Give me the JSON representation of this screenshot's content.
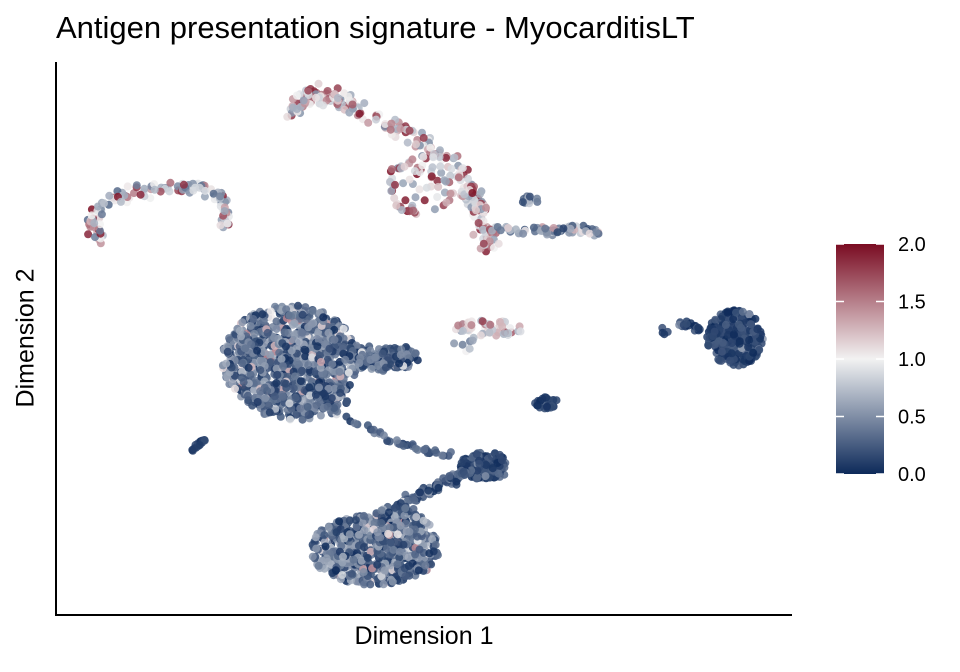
{
  "chart_data": {
    "type": "scatter",
    "title": "Antigen presentation signature - MyocarditisLT",
    "xlabel": "Dimension 1",
    "ylabel": "Dimension 2",
    "xlim": [
      0,
      100
    ],
    "ylim": [
      0,
      100
    ],
    "axis_ticks": "none",
    "grid": false,
    "legend_position": "right",
    "color_scale": {
      "min": 0.0,
      "max": 2.0,
      "ticks": [
        0.0,
        0.5,
        1.0,
        1.5,
        2.0
      ],
      "tick_labels": [
        "0.0",
        "0.5",
        "1.0",
        "1.5",
        "2.0"
      ],
      "low_color": "#0d2a5a",
      "mid_color": "#f2f2f2",
      "high_color": "#7a0c22"
    },
    "clusters": [
      {
        "id": "top-left-arc",
        "center": [
          20,
          75
        ],
        "score_range": [
          0.3,
          2.0
        ],
        "note": "arc-shaped cluster"
      },
      {
        "id": "top-center-arm",
        "center": [
          52,
          81
        ],
        "score_range": [
          0.5,
          2.0
        ],
        "note": "largest high-score cluster"
      },
      {
        "id": "top-right-strip",
        "center": [
          70,
          69
        ],
        "score_range": [
          0.1,
          1.4
        ]
      },
      {
        "id": "center-left-mass",
        "center": [
          31,
          46
        ],
        "score_range": [
          0.0,
          1.5
        ],
        "note": "dense low-score mass"
      },
      {
        "id": "center-small",
        "center": [
          60,
          52
        ],
        "score_range": [
          0.6,
          1.8
        ]
      },
      {
        "id": "right-ball",
        "center": [
          93,
          50
        ],
        "score_range": [
          0.0,
          0.6
        ]
      },
      {
        "id": "small-blob",
        "center": [
          66,
          38
        ],
        "score_range": [
          0.0,
          0.4
        ]
      },
      {
        "id": "tiny-left",
        "center": [
          19,
          30
        ],
        "score_range": [
          0.0,
          0.4
        ]
      },
      {
        "id": "bottom-mass",
        "center": [
          42,
          9
        ],
        "score_range": [
          0.0,
          1.5
        ],
        "note": "lower dense cluster"
      },
      {
        "id": "bottom-bridge",
        "center": [
          55,
          25
        ],
        "score_range": [
          0.0,
          1.0
        ]
      }
    ]
  }
}
